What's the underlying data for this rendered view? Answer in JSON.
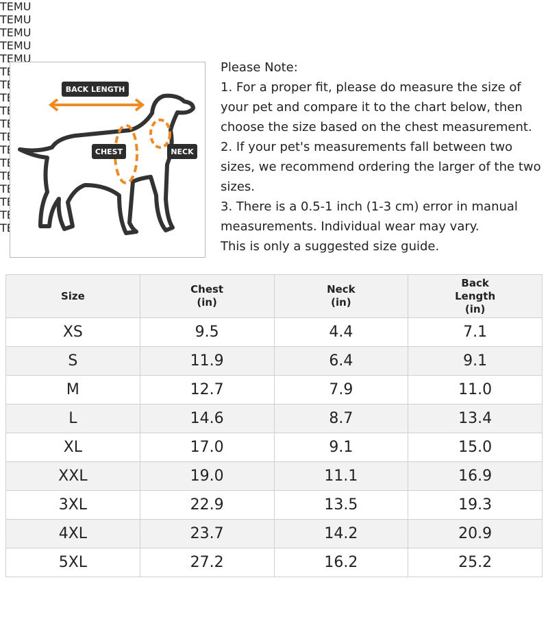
{
  "watermark": "TEMU",
  "diagram": {
    "labels": [
      "BACK LENGTH",
      "CHEST",
      "NECK"
    ]
  },
  "note": {
    "title": "Please Note:",
    "lines": [
      "1. For a proper fit, please do measure the size of your pet and compare it to the chart below, then choose the size based on the chest measurement.",
      "2. If your pet's measurements fall between two sizes, we recommend ordering the larger of the two sizes.",
      "3. There is a 0.5-1 inch (1-3 cm) error in manual measurements. Individual wear may vary.",
      "This is only a suggested size guide."
    ]
  },
  "table": {
    "headers": [
      [
        "Size"
      ],
      [
        "Chest",
        "(in)"
      ],
      [
        "Neck",
        "(in)"
      ],
      [
        "Back",
        "Length",
        "(in)"
      ]
    ],
    "rows": [
      [
        "XS",
        "9.5",
        "4.4",
        "7.1"
      ],
      [
        "S",
        "11.9",
        "6.4",
        "9.1"
      ],
      [
        "M",
        "12.7",
        "7.9",
        "11.0"
      ],
      [
        "L",
        "14.6",
        "8.7",
        "13.4"
      ],
      [
        "XL",
        "17.0",
        "9.1",
        "15.0"
      ],
      [
        "XXL",
        "19.0",
        "11.1",
        "16.9"
      ],
      [
        "3XL",
        "22.9",
        "13.5",
        "19.3"
      ],
      [
        "4XL",
        "23.7",
        "14.2",
        "20.9"
      ],
      [
        "5XL",
        "27.2",
        "16.2",
        "25.2"
      ]
    ]
  }
}
